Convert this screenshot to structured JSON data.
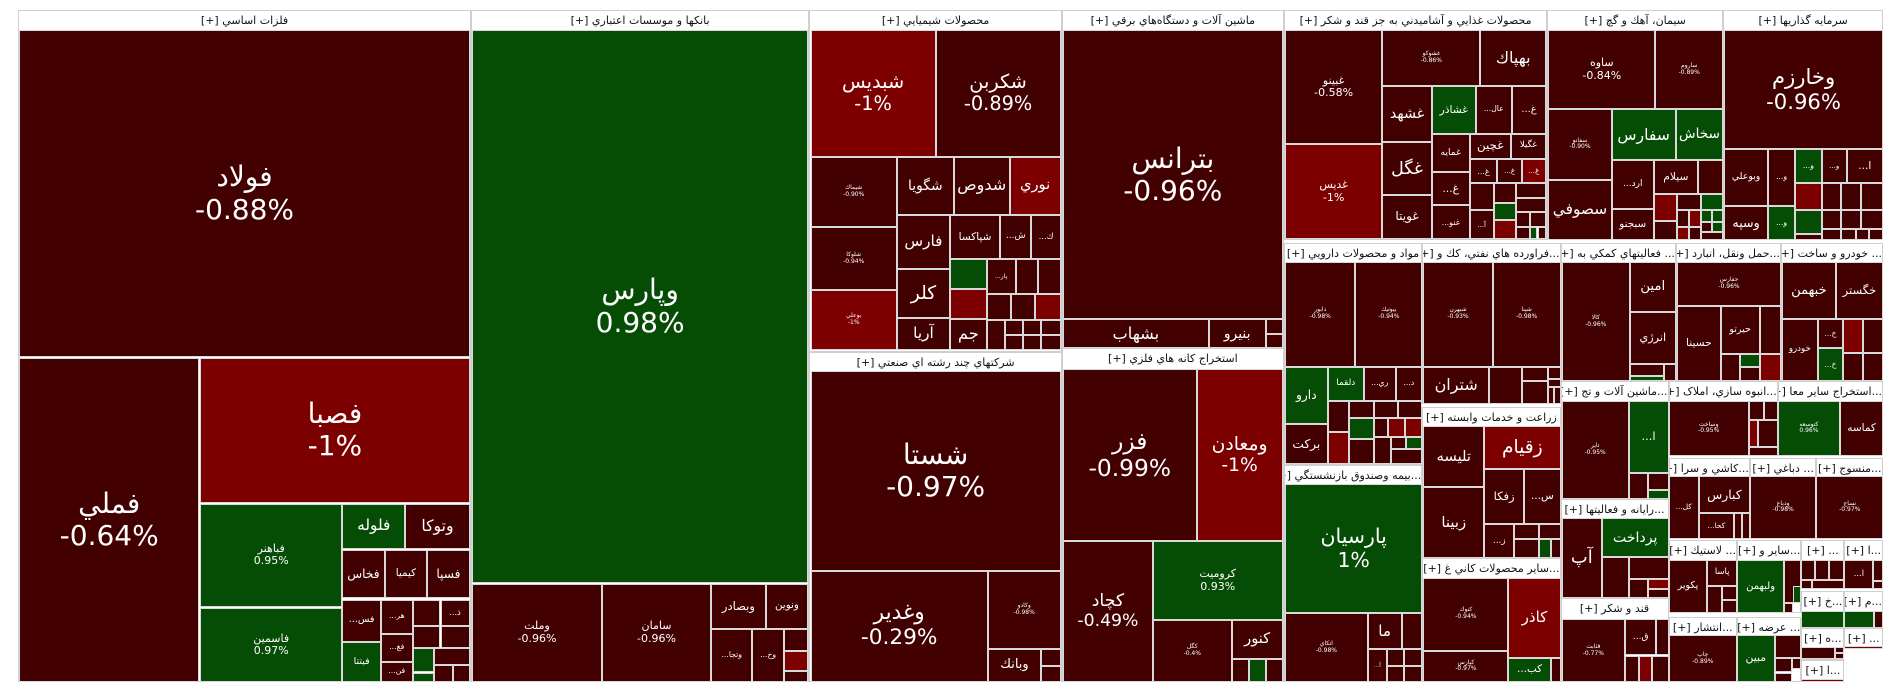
{
  "colors": {
    "d": "#420000",
    "r": "#7d0000",
    "g": "#054d05"
  },
  "sectors": [
    {
      "title": "فلزات اساسي [+]",
      "tiles": [
        {
          "s": "فولاد",
          "p": "-0.88%",
          "c": "d"
        },
        {
          "s": "فملي",
          "p": "-0.64%",
          "c": "d"
        },
        {
          "s": "فصبا",
          "p": "-1%",
          "c": "r"
        },
        {
          "s": "فباهنر",
          "p": "0.95%",
          "c": "g"
        },
        {
          "s": "فاسمين",
          "p": "0.97%",
          "c": "g"
        },
        {
          "s": "فلوله",
          "c": "g"
        },
        {
          "s": "وتوكا",
          "c": "d"
        },
        {
          "s": "فخاس",
          "c": "d"
        },
        {
          "s": "كيميا",
          "c": "d"
        },
        {
          "s": "فسپا",
          "c": "d"
        },
        {
          "s": "...فس",
          "c": "d"
        },
        {
          "s": "...هر",
          "c": "d"
        },
        {
          "c": "d"
        },
        {
          "s": "...ذ",
          "c": "d"
        },
        {
          "c": "d"
        },
        {
          "c": "d"
        },
        {
          "s": "فيتتا",
          "c": "g"
        },
        {
          "s": "...فغ",
          "c": "d"
        },
        {
          "s": "...فن",
          "c": "d"
        },
        {
          "c": "g"
        },
        {
          "c": "g"
        },
        {
          "c": "d"
        },
        {
          "c": "d"
        },
        {
          "c": "d"
        }
      ]
    },
    {
      "title": "بانكها و موسسات اعتباري [+]",
      "tiles": [
        {
          "s": "وپارس",
          "p": "0.98%",
          "c": "g"
        },
        {
          "s": "وملت",
          "p": "-0.96%",
          "c": "d"
        },
        {
          "s": "سامان",
          "p": "-0.96%",
          "c": "d"
        },
        {
          "s": "وبصادر",
          "c": "d"
        },
        {
          "s": "ونوين",
          "c": "d"
        },
        {
          "s": "...وتجا",
          "c": "d"
        },
        {
          "s": "...وخ",
          "c": "d"
        },
        {
          "c": "d"
        },
        {
          "c": "r"
        },
        {
          "c": "d"
        }
      ]
    },
    {
      "title": "محصولات شيميايي [+]",
      "tiles": [
        {
          "s": "شبديس",
          "p": "-1%",
          "c": "r"
        },
        {
          "s": "شكربن",
          "p": "-0.89%",
          "c": "d"
        },
        {
          "s": "شيماك",
          "p": "-0.90%",
          "c": "d"
        },
        {
          "s": "شلوكا",
          "p": "-0.94%",
          "c": "d"
        },
        {
          "s": "بوعلي",
          "p": "-1%",
          "c": "r"
        },
        {
          "s": "شگويا",
          "c": "d"
        },
        {
          "s": "شدوص",
          "c": "d"
        },
        {
          "s": "نوري",
          "c": "r"
        },
        {
          "s": "فارس",
          "c": "d"
        },
        {
          "s": "شپاكسا",
          "c": "d"
        },
        {
          "s": "...ش",
          "c": "d"
        },
        {
          "s": "...ك",
          "c": "d"
        },
        {
          "c": "g"
        },
        {
          "s": "...پار",
          "c": "d"
        },
        {
          "c": "d"
        },
        {
          "c": "d"
        },
        {
          "s": "كلر",
          "c": "d"
        },
        {
          "s": "آريا",
          "c": "d"
        },
        {
          "c": "r"
        },
        {
          "s": "جم",
          "c": "d"
        },
        {
          "c": "d"
        },
        {
          "c": "d"
        },
        {
          "c": "r"
        },
        {
          "c": "d"
        },
        {
          "c": "d"
        },
        {
          "c": "d"
        },
        {
          "c": "d"
        },
        {
          "c": "d"
        },
        {
          "c": "d"
        },
        {
          "c": "d"
        }
      ]
    },
    {
      "title": "شرکتهاي چند رشته اي صنعتي [+]",
      "tiles": [
        {
          "s": "شستا",
          "p": "-0.97%",
          "c": "d"
        },
        {
          "s": "وغدير",
          "p": "-0.29%",
          "c": "d"
        },
        {
          "s": "وكادو",
          "p": "-0.98%",
          "c": "d"
        },
        {
          "s": "وبانك",
          "c": "d"
        },
        {
          "c": "d"
        },
        {
          "c": "d"
        }
      ]
    },
    {
      "title": "ماشين آلات و دستگاه‌هاي برقي [+]",
      "tiles": [
        {
          "s": "بترانس",
          "p": "-0.96%",
          "c": "d"
        },
        {
          "s": "بشهاب",
          "c": "d"
        },
        {
          "s": "بنيرو",
          "c": "d"
        },
        {
          "c": "d"
        },
        {
          "c": "d"
        }
      ]
    },
    {
      "title": "استخراج كانه هاي فلزي [+]",
      "tiles": [
        {
          "s": "فزر",
          "p": "-0.99%",
          "c": "d"
        },
        {
          "s": "ومعادن",
          "p": "-1%",
          "c": "r"
        },
        {
          "s": "كچاد",
          "p": "-0.49%",
          "c": "d"
        },
        {
          "s": "كروميت",
          "p": "0.93%",
          "c": "g"
        },
        {
          "s": "كگل",
          "p": "-0.4%",
          "c": "d"
        },
        {
          "s": "كنور",
          "c": "d"
        },
        {
          "c": "d"
        },
        {
          "c": "g"
        },
        {
          "c": "d"
        }
      ]
    },
    {
      "title": "محصولات غذايي و آشاميدني به جز قند و شكر [+]",
      "tiles": [
        {
          "s": "غبينو",
          "p": "-0.58%",
          "c": "d"
        },
        {
          "s": "غديس",
          "p": "-1%",
          "c": "r"
        },
        {
          "s": "غشوكو",
          "p": "-0.86%",
          "c": "d"
        },
        {
          "s": "بهپاك",
          "c": "d"
        },
        {
          "s": "غشهد",
          "c": "d"
        },
        {
          "s": "غشاذر",
          "c": "g"
        },
        {
          "s": "...عال",
          "c": "d"
        },
        {
          "s": "...غ",
          "c": "d"
        },
        {
          "s": "غگل",
          "c": "d"
        },
        {
          "s": "غويتا",
          "c": "d"
        },
        {
          "s": "غمايه",
          "c": "d"
        },
        {
          "s": "غچين",
          "c": "d"
        },
        {
          "s": "غگيلا",
          "c": "d"
        },
        {
          "s": "...غ",
          "c": "d"
        },
        {
          "s": "...غ",
          "c": "d"
        },
        {
          "s": "...غ",
          "c": "r"
        },
        {
          "s": "...غ",
          "c": "d"
        },
        {
          "s": "...غنو",
          "c": "d"
        },
        {
          "c": "d"
        },
        {
          "c": "d"
        },
        {
          "c": "g"
        },
        {
          "c": "r"
        },
        {
          "c": "d"
        },
        {
          "c": "d"
        },
        {
          "c": "d"
        },
        {
          "c": "d"
        },
        {
          "c": "d"
        },
        {
          "c": "g"
        },
        {
          "c": "d"
        },
        {
          "s": "...آ",
          "c": "d"
        }
      ]
    },
    {
      "title": "سيمان، آهك و گچ [+]",
      "tiles": [
        {
          "s": "ساوه",
          "p": "-0.84%",
          "c": "d"
        },
        {
          "s": "ساروم",
          "p": "-0.89%",
          "c": "d"
        },
        {
          "s": "سفانو",
          "p": "-0.90%",
          "c": "d"
        },
        {
          "s": "سفارس",
          "c": "g"
        },
        {
          "s": "سخاش",
          "c": "g"
        },
        {
          "s": "سصوفي",
          "c": "d"
        },
        {
          "s": "...ارد",
          "c": "d"
        },
        {
          "s": "سبجنو",
          "c": "d"
        },
        {
          "s": "سيلام",
          "c": "d"
        },
        {
          "c": "d"
        },
        {
          "c": "r"
        },
        {
          "c": "d"
        },
        {
          "c": "d"
        },
        {
          "c": "g"
        },
        {
          "c": "d"
        },
        {
          "c": "r"
        },
        {
          "c": "g"
        },
        {
          "c": "g"
        },
        {
          "c": "r"
        },
        {
          "c": "d"
        },
        {
          "c": "d"
        },
        {
          "c": "g"
        },
        {
          "c": "d"
        }
      ]
    },
    {
      "title": "سرمايه گذاريها [+]",
      "tiles": [
        {
          "s": "وخارزم",
          "p": "-0.96%",
          "c": "d"
        },
        {
          "s": "وبوعلي",
          "c": "d"
        },
        {
          "s": "...و",
          "c": "d"
        },
        {
          "s": "...و",
          "c": "g"
        },
        {
          "s": "...و",
          "c": "d"
        },
        {
          "s": "...ا",
          "c": "d"
        },
        {
          "c": "r"
        },
        {
          "c": "d"
        },
        {
          "c": "d"
        },
        {
          "c": "d"
        },
        {
          "s": "وسپه",
          "c": "d"
        },
        {
          "s": "...و",
          "c": "g"
        },
        {
          "c": "g"
        },
        {
          "c": "d"
        },
        {
          "c": "d"
        },
        {
          "c": "d"
        },
        {
          "c": "d"
        },
        {
          "c": "d"
        },
        {
          "c": "d"
        },
        {
          "c": "d"
        },
        {
          "c": "d"
        }
      ]
    },
    {
      "title": "مواد و محصولات دارويي [+]",
      "tiles": [
        {
          "s": "دابور",
          "p": "-0.98%",
          "c": "d"
        },
        {
          "s": "بيوتيك",
          "p": "-0.94%",
          "c": "d"
        },
        {
          "s": "دارو",
          "c": "g"
        },
        {
          "s": "دلقما",
          "c": "g"
        },
        {
          "s": "...ري",
          "c": "d"
        },
        {
          "s": "...د",
          "c": "d"
        },
        {
          "s": "بركت",
          "c": "d"
        },
        {
          "c": "d"
        },
        {
          "c": "d"
        },
        {
          "c": "d"
        },
        {
          "c": "d"
        },
        {
          "c": "r"
        },
        {
          "c": "g"
        },
        {
          "c": "d"
        },
        {
          "c": "r"
        },
        {
          "c": "r"
        },
        {
          "c": "d"
        },
        {
          "c": "d"
        },
        {
          "c": "d"
        },
        {
          "c": "g"
        },
        {
          "c": "d"
        }
      ]
    },
    {
      "title": "...فراورده هاي نفتي، كك و [+]",
      "tiles": [
        {
          "s": "شبهرن",
          "p": "-0.93%",
          "c": "d"
        },
        {
          "s": "شپنا",
          "p": "-0.98%",
          "c": "d"
        },
        {
          "s": "شتران",
          "c": "d"
        },
        {
          "c": "d"
        },
        {
          "c": "d"
        },
        {
          "c": "d"
        },
        {
          "c": "d"
        },
        {
          "c": "d"
        },
        {
          "c": "d"
        },
        {
          "c": "d"
        }
      ]
    },
    {
      "title": "... فعاليتهاي كمكي به [+]",
      "tiles": [
        {
          "s": "كالا",
          "p": "-0.96%",
          "c": "d"
        },
        {
          "s": "امين",
          "c": "d"
        },
        {
          "s": "انرژي",
          "c": "d"
        },
        {
          "c": "d"
        },
        {
          "c": "d"
        },
        {
          "c": "g"
        }
      ]
    },
    {
      "title": "...حمل ونقل، انبارد [+]",
      "tiles": [
        {
          "s": "حفارس",
          "p": "-0.96%",
          "c": "d"
        },
        {
          "s": "حسينا",
          "c": "d"
        },
        {
          "s": "حيرتو",
          "c": "d"
        },
        {
          "c": "d"
        },
        {
          "c": "d"
        },
        {
          "c": "g"
        },
        {
          "c": "d"
        },
        {
          "c": "r"
        }
      ]
    },
    {
      "title": "... خودرو و ساخت [+]",
      "tiles": [
        {
          "s": "خبهمن",
          "c": "d"
        },
        {
          "s": "خگستر",
          "c": "d"
        },
        {
          "s": "خودرو",
          "c": "d"
        },
        {
          "s": "...خ",
          "c": "d"
        },
        {
          "s": "...خ",
          "c": "g"
        },
        {
          "c": "r"
        },
        {
          "c": "d"
        },
        {
          "c": "d"
        },
        {
          "c": "d"
        }
      ]
    },
    {
      "title": "زراعت و خدمات وابسته [+]",
      "tiles": [
        {
          "s": "تليسه",
          "c": "d"
        },
        {
          "s": "زقيام",
          "c": "r"
        },
        {
          "s": "زفكا",
          "c": "d"
        },
        {
          "s": "...س",
          "c": "d"
        },
        {
          "s": "زبينا",
          "c": "d"
        },
        {
          "s": "...ز",
          "c": "d"
        },
        {
          "c": "d"
        },
        {
          "c": "d"
        },
        {
          "c": "d"
        },
        {
          "c": "g"
        },
        {
          "c": "d"
        }
      ]
    },
    {
      "title": "...بيمه وصندوق بازنشستگي [+]",
      "tiles": [
        {
          "s": "پارسيان",
          "p": "1%",
          "c": "g"
        },
        {
          "s": "اتكاي",
          "p": "-0.98%",
          "c": "d"
        },
        {
          "s": "ما",
          "c": "d"
        },
        {
          "s": "...آ",
          "c": "d"
        },
        {
          "c": "d"
        },
        {
          "c": "d"
        },
        {
          "c": "d"
        },
        {
          "c": "d"
        },
        {
          "c": "d"
        }
      ]
    },
    {
      "title": "...ساير محصولات كاني غ [+]",
      "tiles": [
        {
          "s": "كنوك",
          "p": "-0.94%",
          "c": "d"
        },
        {
          "s": "كاذر",
          "c": "r"
        },
        {
          "s": "كپارس",
          "p": "-0.97%",
          "c": "d"
        },
        {
          "s": "...كب",
          "c": "g"
        },
        {
          "c": "d"
        }
      ]
    },
    {
      "title": "...ماشين آلات و تج [+]",
      "tiles": [
        {
          "s": "تاير",
          "p": "-0.95%",
          "c": "d"
        },
        {
          "s": "...ا",
          "c": "g"
        },
        {
          "c": "d"
        },
        {
          "c": "d"
        },
        {
          "c": "g"
        }
      ]
    },
    {
      "title": "...رايانه و فعاليتها [+]",
      "tiles": [
        {
          "s": "آپ",
          "c": "d"
        },
        {
          "s": "پرداخت",
          "c": "g"
        },
        {
          "c": "d"
        },
        {
          "c": "d"
        },
        {
          "c": "d"
        },
        {
          "c": "r"
        },
        {
          "c": "d"
        }
      ]
    },
    {
      "title": "قند و شكر [+]",
      "tiles": [
        {
          "s": "قثابت",
          "p": "-0.77%",
          "c": "d"
        },
        {
          "s": "...ق",
          "c": "d"
        },
        {
          "c": "d"
        },
        {
          "c": "d"
        },
        {
          "c": "r"
        },
        {
          "c": "d"
        }
      ]
    },
    {
      "title": "...انبوه سازي، املاک [+]",
      "tiles": [
        {
          "s": "وساخت",
          "p": "-0.95%",
          "c": "d"
        },
        {
          "c": "d"
        },
        {
          "c": "d"
        },
        {
          "c": "r"
        },
        {
          "c": "d"
        },
        {
          "c": "d"
        }
      ]
    },
    {
      "title": "...استخراج ساير معا [+]",
      "tiles": [
        {
          "s": "كتوسعه",
          "p": "0.96%",
          "c": "g"
        },
        {
          "s": "كماسه",
          "c": "d"
        }
      ]
    },
    {
      "title": "...كاشي و سرا [+]",
      "tiles": [
        {
          "s": "...كل",
          "c": "d"
        },
        {
          "s": "كبارس",
          "c": "d"
        },
        {
          "s": "...كحا",
          "c": "d"
        },
        {
          "c": "d"
        },
        {
          "c": "d"
        }
      ]
    },
    {
      "title": "... دباغي [+]",
      "tiles": [
        {
          "s": "ودباغ",
          "p": "-0.98%",
          "c": "d"
        }
      ]
    },
    {
      "title": "...منسوج [+]",
      "tiles": [
        {
          "s": "نساج",
          "p": "-0.97%",
          "c": "d"
        }
      ]
    },
    {
      "title": "... لاستيك [+]",
      "tiles": [
        {
          "s": "پكوير",
          "c": "d"
        },
        {
          "s": "پاسا",
          "c": "d"
        },
        {
          "c": "d"
        },
        {
          "c": "d"
        },
        {
          "c": "d"
        }
      ]
    },
    {
      "title": "...ساير و [+]",
      "tiles": [
        {
          "s": "ولبهمن",
          "c": "g"
        },
        {
          "c": "d"
        },
        {
          "c": "d"
        },
        {
          "c": "g"
        }
      ]
    },
    {
      "title": "... [+]",
      "tiles": [
        {
          "c": "d"
        },
        {
          "c": "d"
        },
        {
          "c": "d"
        },
        {
          "c": "d"
        },
        {
          "c": "d"
        }
      ]
    },
    {
      "title": "...ا [+]",
      "tiles": [
        {
          "s": "...ا",
          "c": "d"
        },
        {
          "c": "d"
        },
        {
          "c": "d"
        }
      ]
    },
    {
      "title": "...خ [+]",
      "tiles": [
        {
          "c": "g"
        }
      ]
    },
    {
      "title": "...م [+]",
      "tiles": [
        {
          "c": "g"
        },
        {
          "c": "d"
        }
      ]
    },
    {
      "title": "...ه [+]",
      "tiles": [
        {
          "c": "d"
        },
        {
          "c": "d"
        },
        {
          "c": "d"
        }
      ]
    },
    {
      "title": "... [+]",
      "tiles": [
        {
          "c": "r"
        }
      ]
    },
    {
      "title": "...ا [+]",
      "tiles": [
        {
          "c": "r"
        }
      ]
    },
    {
      "title": "...انتشار [+]",
      "tiles": [
        {
          "s": "چاپ",
          "p": "-0.89%",
          "c": "d"
        }
      ]
    },
    {
      "title": "... عرضه [+]",
      "tiles": [
        {
          "s": "مبين",
          "c": "g"
        },
        {
          "c": "d"
        },
        {
          "c": "d"
        },
        {
          "c": "d"
        },
        {
          "c": "d"
        }
      ]
    }
  ]
}
